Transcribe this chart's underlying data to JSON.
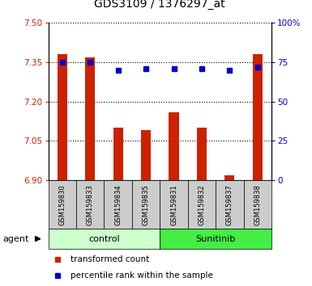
{
  "title": "GDS3109 / 1376297_at",
  "samples": [
    "GSM159830",
    "GSM159833",
    "GSM159834",
    "GSM159835",
    "GSM159831",
    "GSM159832",
    "GSM159837",
    "GSM159838"
  ],
  "bar_values": [
    7.38,
    7.37,
    7.1,
    7.09,
    7.16,
    7.1,
    6.92,
    7.38
  ],
  "percentile_values": [
    75,
    75,
    70,
    71,
    71,
    71,
    70,
    72
  ],
  "ylim_left": [
    6.9,
    7.5
  ],
  "yticks_left": [
    6.9,
    7.05,
    7.2,
    7.35,
    7.5
  ],
  "ylim_right": [
    0,
    100
  ],
  "yticks_right": [
    0,
    25,
    50,
    75,
    100
  ],
  "ytick_labels_right": [
    "0",
    "25",
    "50",
    "75",
    "100%"
  ],
  "bar_color": "#cc2200",
  "blue_color": "#0000cc",
  "group_labels": [
    "control",
    "Sunitinib"
  ],
  "group_ranges": [
    [
      0,
      3
    ],
    [
      4,
      7
    ]
  ],
  "group_colors": [
    "#ccffcc",
    "#44ee44"
  ],
  "agent_label": "agent",
  "legend_bar_label": "transformed count",
  "legend_dot_label": "percentile rank within the sample",
  "bar_baseline": 6.9,
  "bar_width": 0.35,
  "sample_bg_color": "#cccccc",
  "tick_label_color_left": "#cc2200",
  "tick_label_color_right": "#0000cc"
}
